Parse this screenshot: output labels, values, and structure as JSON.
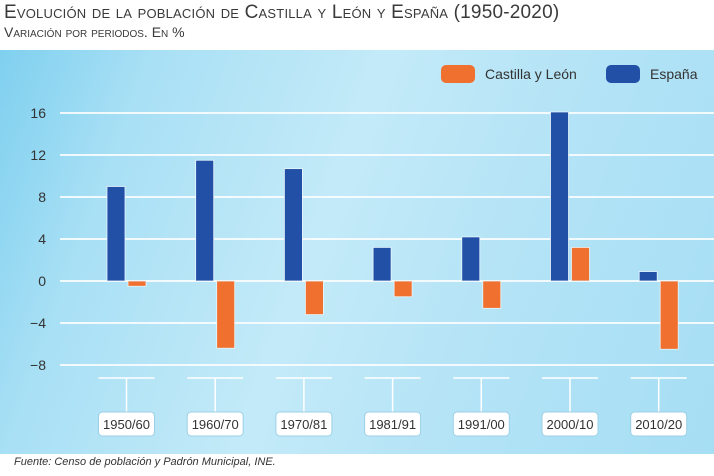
{
  "title": "Evolución de la población de Castilla y León y España (1950-2020)",
  "subtitle": "Variación por periodos. En %",
  "source": "Fuente: Censo de población y Padrón Municipal, INE.",
  "chart_data": {
    "type": "bar",
    "title": "Evolución de la población de Castilla y León y España (1950-2020)",
    "subtitle": "Variación por periodos. En %",
    "categories": [
      "1950/60",
      "1960/70",
      "1970/81",
      "1981/91",
      "1991/00",
      "2000/10",
      "2010/20"
    ],
    "series": [
      {
        "name": "España",
        "color": "#2250a6",
        "values": [
          9.0,
          11.5,
          10.7,
          3.2,
          4.2,
          16.1,
          0.9
        ]
      },
      {
        "name": "Castilla y León",
        "color": "#f07030",
        "values": [
          -0.5,
          -6.4,
          -3.2,
          -1.5,
          -2.6,
          3.2,
          -6.5
        ]
      }
    ],
    "yticks": [
      "16",
      "12",
      "8",
      "4",
      "0",
      "−4",
      "−8"
    ],
    "ytick_values": [
      16,
      12,
      8,
      4,
      0,
      -4,
      -8
    ],
    "ylim": [
      -9,
      17
    ],
    "grid": true,
    "legend": "top-right",
    "legend_order": [
      "Castilla y León",
      "España"
    ]
  }
}
